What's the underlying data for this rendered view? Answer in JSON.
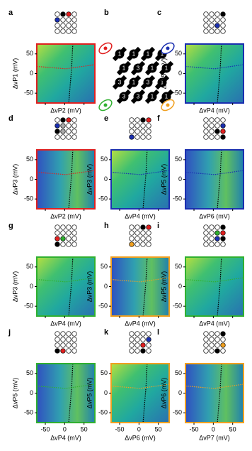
{
  "panels": [
    {
      "label": "a",
      "ylabel": "ΔvP1 (mV)",
      "xlabel": "ΔvP2 (mV)",
      "border": "#e02020",
      "ylim": [
        -75,
        75
      ],
      "yticks": [
        -50,
        0,
        50
      ],
      "xlim": [
        -72,
        78
      ],
      "xticks": [
        -50,
        0,
        50
      ],
      "dots": [
        null,
        "#000000",
        "#e02020",
        null,
        "#1a2fb0",
        null,
        null,
        null,
        null,
        null,
        null,
        null,
        null,
        null,
        null,
        null
      ]
    },
    {
      "label": "b",
      "lattice": [
        [
          "1",
          "1",
          "1",
          "1"
        ],
        [
          "1",
          "3",
          "1",
          "1"
        ],
        [
          "3",
          "1",
          "3",
          "1"
        ],
        [
          "3",
          "3",
          "1",
          "1"
        ]
      ]
    },
    {
      "label": "c",
      "ylabel": "ΔvP5 (mV)",
      "xlabel": "ΔvP4 (mV)",
      "border": "#1a2fb0",
      "ylim": [
        -75,
        75
      ],
      "yticks": [
        -50,
        0,
        50
      ],
      "xlim": [
        -72,
        78
      ],
      "xticks": [
        -50,
        0,
        50
      ],
      "dots": [
        null,
        null,
        null,
        "#000000",
        null,
        null,
        null,
        null,
        null,
        null,
        "#1a2fb0",
        null,
        null,
        null,
        null,
        null
      ]
    },
    {
      "label": "d",
      "ylabel": "ΔvP3 (mV)",
      "xlabel": "ΔvP2 (mV)",
      "border": "#e02020",
      "ylim": [
        -75,
        75
      ],
      "yticks": [
        -50,
        0,
        50
      ],
      "xlim": [
        -72,
        78
      ],
      "xticks": [
        -50,
        0,
        50
      ],
      "dots": [
        null,
        "#000000",
        "#e02020",
        null,
        "#1a2fb0",
        "#aaaaaa",
        null,
        null,
        "#000000",
        "#aaaaaa",
        null,
        null,
        null,
        null,
        null,
        null
      ]
    },
    {
      "label": "e",
      "ylabel": "ΔvP3 (mV)",
      "xlabel": "ΔvP4 (mV)",
      "border": "#1a2fb0",
      "ylim": [
        -75,
        75
      ],
      "yticks": [
        -50,
        0,
        50
      ],
      "xlim": [
        -72,
        78
      ],
      "xticks": [
        -50,
        0,
        50
      ],
      "dots": [
        null,
        null,
        "#000000",
        "#e02020",
        null,
        null,
        null,
        null,
        null,
        null,
        null,
        null,
        "#1a2fb0",
        null,
        null,
        null
      ]
    },
    {
      "label": "f",
      "ylabel": "ΔvP5 (mV)",
      "xlabel": "ΔvP6 (mV)",
      "border": "#1a2fb0",
      "ylim": [
        -75,
        75
      ],
      "yticks": [
        -50,
        0,
        50
      ],
      "xlim": [
        -72,
        78
      ],
      "xticks": [
        -50,
        0,
        50
      ],
      "dots": [
        null,
        null,
        null,
        null,
        null,
        null,
        null,
        "#1a2fb0",
        null,
        null,
        "#000000",
        "#e02020",
        null,
        null,
        null,
        "#000000"
      ]
    },
    {
      "label": "g",
      "ylabel": "ΔvP3 (mV)",
      "xlabel": "ΔvP4 (mV)",
      "border": "#30b030",
      "ylim": [
        -75,
        75
      ],
      "yticks": [
        -50,
        0,
        50
      ],
      "xlim": [
        -72,
        78
      ],
      "xticks": [
        -50,
        0,
        50
      ],
      "dots": [
        null,
        null,
        null,
        null,
        null,
        null,
        null,
        null,
        "#e02020",
        "#30b030",
        null,
        null,
        "#000000",
        null,
        null,
        null
      ]
    },
    {
      "label": "h",
      "ylabel": "ΔvP3 (mV)",
      "xlabel": "ΔvP4 (mV)",
      "border": "#f0a020",
      "ylim": [
        -75,
        75
      ],
      "yticks": [
        -50,
        0,
        50
      ],
      "xlim": [
        -72,
        78
      ],
      "xticks": [
        -50,
        0,
        50
      ],
      "dots": [
        null,
        null,
        "#000000",
        "#e02020",
        null,
        null,
        null,
        null,
        null,
        null,
        null,
        null,
        "#f0a020",
        null,
        null,
        null
      ]
    },
    {
      "label": "i",
      "ylabel": "ΔvP5 (mV)",
      "xlabel": "ΔvP4 (mV)",
      "border": "#30b030",
      "ylim": [
        -75,
        75
      ],
      "yticks": [
        -50,
        0,
        50
      ],
      "xlim": [
        -72,
        78
      ],
      "xticks": [
        -50,
        0,
        50
      ],
      "dots": [
        null,
        null,
        null,
        "#000000",
        null,
        null,
        "#30b030",
        "#e02020",
        null,
        null,
        "#1a2fb0",
        "#000000",
        null,
        null,
        null,
        null
      ]
    },
    {
      "label": "j",
      "ylabel": "ΔvP5 (mV)",
      "xlabel": "ΔvP4 (mV)",
      "border": "#30b030",
      "ylim": [
        -75,
        75
      ],
      "yticks": [
        -50,
        0,
        50
      ],
      "xlim": [
        -72,
        78
      ],
      "xticks": [
        -50,
        0,
        50
      ],
      "dots": [
        null,
        null,
        null,
        null,
        null,
        null,
        null,
        null,
        null,
        null,
        null,
        null,
        "#000000",
        "#e02020",
        null,
        null
      ]
    },
    {
      "label": "k",
      "ylabel": "ΔvP5 (mV)",
      "xlabel": "ΔvP6 (mV)",
      "border": "#f0a020",
      "ylim": [
        -75,
        75
      ],
      "yticks": [
        -50,
        0,
        50
      ],
      "xlim": [
        -72,
        78
      ],
      "xticks": [
        -50,
        0,
        50
      ],
      "dots": [
        null,
        null,
        null,
        null,
        null,
        null,
        null,
        "#1a2fb0",
        null,
        null,
        "#e02020",
        null,
        null,
        null,
        "#000000",
        null
      ]
    },
    {
      "label": "l",
      "ylabel": "ΔvP6 (mV)",
      "xlabel": "ΔvP7 (mV)",
      "border": "#f0a020",
      "ylim": [
        -75,
        75
      ],
      "yticks": [
        -50,
        0,
        50
      ],
      "xlim": [
        -72,
        78
      ],
      "xticks": [
        -50,
        0,
        50
      ],
      "dots": [
        null,
        null,
        null,
        "#000000",
        null,
        null,
        null,
        null,
        null,
        null,
        null,
        "#f0a020",
        null,
        null,
        "#000000",
        null
      ]
    }
  ]
}
